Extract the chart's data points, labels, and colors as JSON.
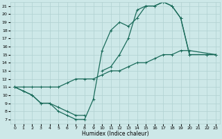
{
  "xlabel": "Humidex (Indice chaleur)",
  "xlim": [
    -0.5,
    23.5
  ],
  "ylim": [
    6.5,
    21.5
  ],
  "xticks": [
    0,
    1,
    2,
    3,
    4,
    5,
    6,
    7,
    8,
    9,
    10,
    11,
    12,
    13,
    14,
    15,
    16,
    17,
    18,
    19,
    20,
    21,
    22,
    23
  ],
  "yticks": [
    7,
    8,
    9,
    10,
    11,
    12,
    13,
    14,
    15,
    16,
    17,
    18,
    19,
    20,
    21
  ],
  "bg_color": "#cde8e8",
  "grid_color": "#b0d0d0",
  "line_color": "#1a6b5a",
  "line1_x": [
    0,
    1,
    2,
    3,
    4,
    5,
    6,
    7,
    8,
    9,
    10,
    11,
    12,
    13,
    14,
    15,
    16,
    17,
    18,
    19,
    20,
    22,
    23
  ],
  "line1_y": [
    11,
    10.5,
    10,
    9,
    9,
    8,
    7.5,
    7,
    7,
    9.5,
    15.5,
    18,
    19,
    18.5,
    19.5,
    21,
    21,
    21.5,
    21,
    19.5,
    15,
    15,
    15
  ],
  "line2a_x": [
    0,
    1,
    2,
    3,
    4,
    5,
    6,
    7,
    8
  ],
  "line2a_y": [
    11,
    10.5,
    10,
    9,
    9,
    8.5,
    8,
    7.5,
    7.5
  ],
  "line2b_x": [
    10,
    11,
    12,
    13,
    14,
    15,
    16,
    17,
    18,
    19,
    20,
    22,
    23
  ],
  "line2b_y": [
    13,
    13.5,
    15,
    17,
    20.5,
    21,
    21,
    21.5,
    21,
    19.5,
    15,
    15,
    15
  ],
  "line3_x": [
    0,
    1,
    2,
    3,
    4,
    5,
    6,
    7,
    8,
    9,
    10,
    11,
    12,
    13,
    14,
    15,
    16,
    17,
    18,
    19,
    20,
    23
  ],
  "line3_y": [
    11,
    11,
    11,
    11,
    11,
    11,
    11.5,
    12,
    12,
    12,
    12.5,
    13,
    13,
    13.5,
    14,
    14,
    14.5,
    15,
    15,
    15.5,
    15.5,
    15
  ],
  "marker_size": 2.5,
  "line_width": 0.9
}
